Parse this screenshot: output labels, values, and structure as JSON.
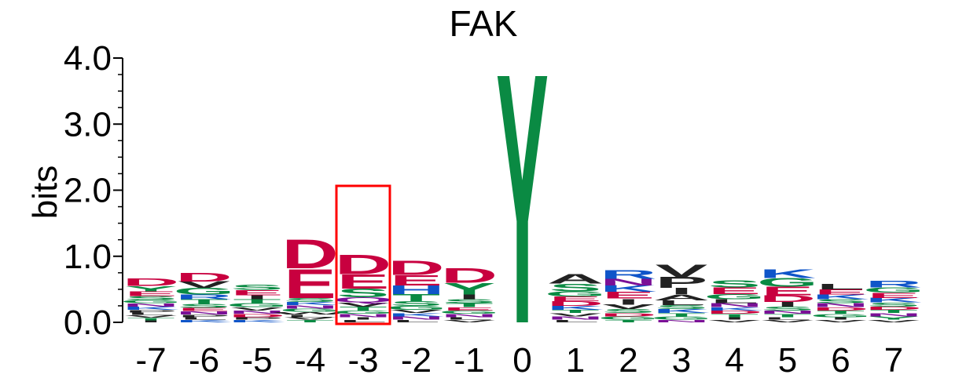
{
  "chart_data": {
    "type": "sequence-logo",
    "title": "FAK",
    "ylabel": "bits",
    "ylim": [
      0,
      4
    ],
    "yticks": [
      "0.0",
      "1.0",
      "2.0",
      "3.0",
      "4.0"
    ],
    "positions": [
      "-7",
      "-6",
      "-5",
      "-4",
      "-3",
      "-2",
      "-1",
      "0",
      "1",
      "2",
      "3",
      "4",
      "5",
      "6",
      "7"
    ],
    "highlight_position": "-3",
    "highlight_color": "#ff0000",
    "colors": {
      "acidic": "#c8003f",
      "polar": "#0a8a43",
      "basic": "#0f55c9",
      "hydrophobic": "#222222",
      "amide": "#7a1096",
      "other": "#e8a0b6"
    },
    "stacks": [
      {
        "position": "-7",
        "letters": [
          [
            "D",
            0.12
          ],
          [
            "Y",
            0.08
          ],
          [
            "E",
            0.07
          ],
          [
            "S",
            0.06
          ],
          [
            "K",
            0.05
          ],
          [
            "N",
            0.05
          ],
          [
            "G",
            0.05
          ],
          [
            "T",
            0.04
          ],
          [
            "V",
            0.04
          ],
          [
            "L",
            0.04
          ],
          [
            "P",
            0.04
          ],
          [
            "I",
            0.03
          ]
        ]
      },
      {
        "position": "-6",
        "letters": [
          [
            "D",
            0.13
          ],
          [
            "G",
            0.1
          ],
          [
            "T",
            0.07
          ],
          [
            "R",
            0.07
          ],
          [
            "V",
            0.1
          ],
          [
            "S",
            0.06
          ],
          [
            "N",
            0.05
          ],
          [
            "E",
            0.05
          ],
          [
            "K",
            0.04
          ],
          [
            "L",
            0.04
          ],
          [
            "P",
            0.04
          ]
        ]
      },
      {
        "position": "-5",
        "letters": [
          [
            "E",
            0.08
          ],
          [
            "S",
            0.08
          ],
          [
            "G",
            0.06
          ],
          [
            "T",
            0.06
          ],
          [
            "I",
            0.06
          ],
          [
            "D",
            0.05
          ],
          [
            "N",
            0.05
          ],
          [
            "V",
            0.05
          ],
          [
            "K",
            0.04
          ],
          [
            "P",
            0.04
          ]
        ]
      },
      {
        "position": "-4",
        "letters": [
          [
            "E",
            0.45
          ],
          [
            "D",
            0.45
          ],
          [
            "S",
            0.06
          ],
          [
            "G",
            0.05
          ],
          [
            "N",
            0.05
          ],
          [
            "K",
            0.05
          ],
          [
            "T",
            0.04
          ],
          [
            "V",
            0.04
          ],
          [
            "L",
            0.04
          ],
          [
            "W",
            0.04
          ]
        ]
      },
      {
        "position": "-3",
        "letters": [
          [
            "D",
            0.3
          ],
          [
            "E",
            0.22
          ],
          [
            "S",
            0.13
          ],
          [
            "Q",
            0.08
          ],
          [
            "T",
            0.06
          ],
          [
            "V",
            0.06
          ],
          [
            "N",
            0.05
          ],
          [
            "G",
            0.05
          ],
          [
            "L",
            0.04
          ],
          [
            "I",
            0.04
          ]
        ]
      },
      {
        "position": "-2",
        "letters": [
          [
            "D",
            0.22
          ],
          [
            "E",
            0.16
          ],
          [
            "H",
            0.13
          ],
          [
            "T",
            0.11
          ],
          [
            "S",
            0.07
          ],
          [
            "G",
            0.06
          ],
          [
            "N",
            0.05
          ],
          [
            "K",
            0.05
          ],
          [
            "V",
            0.05
          ],
          [
            "L",
            0.04
          ]
        ]
      },
      {
        "position": "-1",
        "letters": [
          [
            "D",
            0.23
          ],
          [
            "Y",
            0.18
          ],
          [
            "I",
            0.07
          ],
          [
            "T",
            0.06
          ],
          [
            "S",
            0.06
          ],
          [
            "N",
            0.05
          ],
          [
            "G",
            0.05
          ],
          [
            "E",
            0.05
          ],
          [
            "V",
            0.04
          ],
          [
            "L",
            0.04
          ]
        ]
      },
      {
        "position": "0",
        "letters": [
          [
            "Y",
            3.9
          ]
        ]
      },
      {
        "position": "1",
        "letters": [
          [
            "A",
            0.15
          ],
          [
            "S",
            0.12
          ],
          [
            "G",
            0.08
          ],
          [
            "D",
            0.07
          ],
          [
            "E",
            0.07
          ],
          [
            "K",
            0.06
          ],
          [
            "N",
            0.05
          ],
          [
            "V",
            0.05
          ],
          [
            "T",
            0.05
          ],
          [
            "L",
            0.04
          ]
        ]
      },
      {
        "position": "2",
        "letters": [
          [
            "R",
            0.13
          ],
          [
            "E",
            0.1
          ],
          [
            "K",
            0.1
          ],
          [
            "N",
            0.1
          ],
          [
            "I",
            0.09
          ],
          [
            "V",
            0.07
          ],
          [
            "S",
            0.06
          ],
          [
            "G",
            0.05
          ],
          [
            "D",
            0.05
          ],
          [
            "T",
            0.04
          ]
        ]
      },
      {
        "position": "3",
        "letters": [
          [
            "P",
            0.17
          ],
          [
            "V",
            0.19
          ],
          [
            "I",
            0.1
          ],
          [
            "A",
            0.09
          ],
          [
            "L",
            0.07
          ],
          [
            "K",
            0.06
          ],
          [
            "S",
            0.06
          ],
          [
            "G",
            0.05
          ],
          [
            "T",
            0.05
          ],
          [
            "N",
            0.04
          ]
        ]
      },
      {
        "position": "4",
        "letters": [
          [
            "S",
            0.11
          ],
          [
            "E",
            0.1
          ],
          [
            "G",
            0.08
          ],
          [
            "N",
            0.06
          ],
          [
            "L",
            0.06
          ],
          [
            "T",
            0.05
          ],
          [
            "D",
            0.05
          ],
          [
            "K",
            0.05
          ],
          [
            "V",
            0.04
          ],
          [
            "I",
            0.04
          ]
        ]
      },
      {
        "position": "5",
        "letters": [
          [
            "E",
            0.13
          ],
          [
            "G",
            0.13
          ],
          [
            "K",
            0.13
          ],
          [
            "D",
            0.1
          ],
          [
            "I",
            0.07
          ],
          [
            "S",
            0.06
          ],
          [
            "T",
            0.05
          ],
          [
            "N",
            0.05
          ],
          [
            "V",
            0.04
          ],
          [
            "L",
            0.04
          ]
        ]
      },
      {
        "position": "6",
        "letters": [
          [
            "L",
            0.09
          ],
          [
            "E",
            0.08
          ],
          [
            "K",
            0.07
          ],
          [
            "N",
            0.06
          ],
          [
            "S",
            0.06
          ],
          [
            "G",
            0.05
          ],
          [
            "T",
            0.05
          ],
          [
            "D",
            0.05
          ],
          [
            "V",
            0.04
          ],
          [
            "I",
            0.04
          ]
        ]
      },
      {
        "position": "7",
        "letters": [
          [
            "R",
            0.1
          ],
          [
            "E",
            0.08
          ],
          [
            "G",
            0.08
          ],
          [
            "K",
            0.07
          ],
          [
            "S",
            0.06
          ],
          [
            "Y",
            0.05
          ],
          [
            "N",
            0.05
          ],
          [
            "T",
            0.05
          ],
          [
            "D",
            0.05
          ],
          [
            "V",
            0.04
          ]
        ]
      }
    ]
  }
}
